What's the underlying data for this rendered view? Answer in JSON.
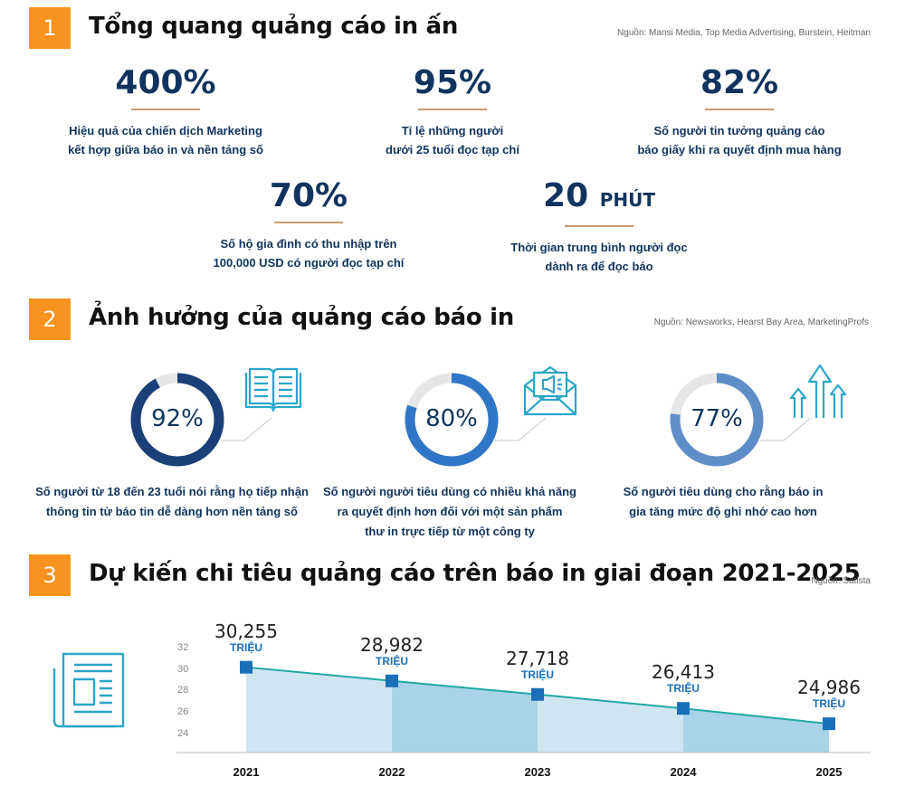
{
  "sections": [
    {
      "number": "1",
      "title": "Tổng quang quảng cáo in ấn",
      "source": "Nguồn: Mansi Media, Top Media Advertising, Burstein, Heitman"
    },
    {
      "number": "2",
      "title": "Ảnh hưởng của quảng cáo báo in",
      "source": "Nguồn: Newsworks, Hearst Bay Area, MarketingProfs"
    },
    {
      "number": "3",
      "title": "Dự kiến chi tiêu quảng cáo trên báo in giai đoạn 2021-2025",
      "source": "Nguồn: Satista"
    }
  ],
  "stats": [
    {
      "value": "400%",
      "unit": "",
      "desc": "Hiệu quả của chiến dịch Marketing\nkết hợp giữa báo in và nền tảng số"
    },
    {
      "value": "95%",
      "unit": "",
      "desc": "Tỉ lệ những người\ndưới 25 tuổi đọc tạp chí"
    },
    {
      "value": "82%",
      "unit": "",
      "desc": "Số người tin tưởng quảng cáo\nbáo giấy khi ra quyết định mua hàng"
    },
    {
      "value": "70%",
      "unit": "",
      "desc": "Số hộ gia đình có thu nhập trên\n100,000 USD có người đọc tạp chí"
    },
    {
      "value": "20",
      "unit": "PHÚT",
      "desc": "Thời gian trung bình người đọc\ndành ra để đọc báo"
    }
  ],
  "rings": [
    {
      "percent": 92,
      "label": "92%",
      "color": "#1b3f78",
      "icon": "open-book-icon",
      "desc": "Số người từ 18 đến 23 tuổi nói rằng họ tiếp nhận\nthông tin từ báo tin dễ dàng hơn nền tảng số"
    },
    {
      "percent": 80,
      "label": "80%",
      "color": "#2f76c8",
      "icon": "mail-megaphone-icon",
      "desc": "Số người người tiêu dùng có nhiều khả năng\nra quyết định hơn đối với một sản phẩm\nthư in trực tiếp từ một công ty"
    },
    {
      "percent": 77,
      "label": "77%",
      "color": "#5f8dc8",
      "icon": "growth-arrows-icon",
      "desc": "Số người tiêu dùng cho rằng báo in\ngia tăng mức độ ghi nhớ cao hơn"
    }
  ],
  "chart_data": {
    "type": "area",
    "categories": [
      "2021",
      "2022",
      "2023",
      "2024",
      "2025"
    ],
    "values": [
      30.255,
      28.982,
      27.718,
      26.413,
      24.986
    ],
    "value_labels": [
      "30,255",
      "28,982",
      "27,718",
      "26,413",
      "24,986"
    ],
    "unit_label": "TRIỆU",
    "yticks": [
      "32",
      "30",
      "28",
      "26",
      "24"
    ],
    "ylim": [
      22.3,
      32
    ],
    "grid": false,
    "line_color": "#20a9a4",
    "marker_color": "#1a6fb8",
    "fill_colors": [
      "#cfe6f2",
      "#a9d3e8"
    ],
    "icon": "newspaper-icon"
  }
}
